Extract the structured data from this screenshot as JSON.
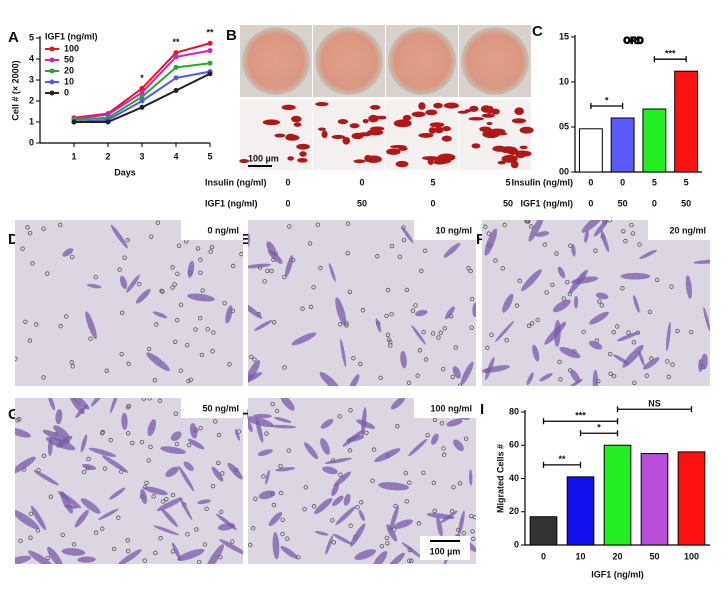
{
  "panel_labels": [
    "A",
    "B",
    "C",
    "D",
    "E",
    "F",
    "G",
    "H",
    "I"
  ],
  "chart_data": [
    {
      "type": "line",
      "x": [
        1,
        2,
        3,
        4,
        5
      ],
      "xlim": [
        0,
        5
      ],
      "xticks": [
        1,
        2,
        3,
        4,
        5
      ],
      "ylim": [
        0,
        5
      ],
      "yticks": [
        0,
        1,
        2,
        3,
        4,
        5
      ],
      "xlabel": "Days",
      "ylabel": "Cell # (× 2000)",
      "legend_title": "IGF1 (ng/ml)",
      "legend": "top-left",
      "series": [
        {
          "name": "100",
          "color": "#e8151b",
          "values": [
            1.2,
            1.4,
            2.6,
            4.3,
            4.75
          ]
        },
        {
          "name": "50",
          "color": "#cc22cc",
          "values": [
            1.15,
            1.35,
            2.4,
            4.1,
            4.4
          ]
        },
        {
          "name": "20",
          "color": "#22aa22",
          "values": [
            1.1,
            1.2,
            2.2,
            3.6,
            3.8
          ]
        },
        {
          "name": "10",
          "color": "#5555ee",
          "values": [
            1.0,
            1.1,
            2.0,
            3.1,
            3.4
          ]
        },
        {
          "name": "0",
          "color": "#222222",
          "values": [
            1.0,
            1.0,
            1.7,
            2.5,
            3.3
          ]
        }
      ],
      "annotations": [
        {
          "text": "*",
          "x": 3
        },
        {
          "text": "**",
          "x": 4
        },
        {
          "text": "**",
          "x": 5
        }
      ]
    },
    {
      "type": "bar",
      "title": "ORD",
      "ylim": [
        0,
        15
      ],
      "yticks": [
        {
          "value": 0,
          "label": "00"
        },
        {
          "value": 5,
          "label": "05"
        },
        {
          "value": 10,
          "label": "10"
        },
        {
          "value": 15,
          "label": "15"
        }
      ],
      "category_rows": [
        {
          "label": "Insulin (ng/ml)",
          "values": [
            0,
            0,
            5,
            5
          ]
        },
        {
          "label": "IGF1 (ng/ml)",
          "values": [
            0,
            50,
            0,
            50
          ]
        }
      ],
      "values": [
        4.8,
        6.0,
        7.0,
        11.2
      ],
      "colors": [
        "#ffffff",
        "#5a5aff",
        "#22ee22",
        "#ff1111"
      ],
      "significance": [
        {
          "text": "*",
          "from": 0,
          "to": 1
        },
        {
          "text": "***",
          "from": 2,
          "to": 3
        }
      ]
    },
    {
      "type": "bar",
      "categories": [
        0,
        10,
        20,
        50,
        100
      ],
      "values": [
        17,
        41,
        60,
        55,
        56
      ],
      "colors": [
        "#333333",
        "#1111ee",
        "#22ee22",
        "#b94fd8",
        "#ff1111"
      ],
      "ylim": [
        0,
        80
      ],
      "yticks": [
        0,
        20,
        40,
        60,
        80
      ],
      "xlabel": "IGF1 (ng/ml)",
      "ylabel": "Migrated Cells #",
      "significance": [
        {
          "text": "**",
          "from": 0,
          "to": 1
        },
        {
          "text": "*",
          "from": 1,
          "to": 2
        },
        {
          "text": "***",
          "from": 0,
          "to": 2
        },
        {
          "text": "NS",
          "from": 2,
          "to": 4
        }
      ]
    }
  ],
  "panel_b": {
    "scale_bar": "100 µm",
    "rows": [
      {
        "label": "Insulin (ng/ml)",
        "values": [
          0,
          0,
          5,
          5
        ]
      },
      {
        "label": "IGF1 (ng/ml)",
        "values": [
          0,
          50,
          0,
          50
        ]
      }
    ]
  },
  "micrographs": [
    {
      "label": "0 ng/ml"
    },
    {
      "label": "10 ng/ml"
    },
    {
      "label": "20 ng/ml"
    },
    {
      "label": "50 ng/ml"
    },
    {
      "label": "100 ng/ml"
    }
  ],
  "micrograph_scale_bar": "100 µm"
}
